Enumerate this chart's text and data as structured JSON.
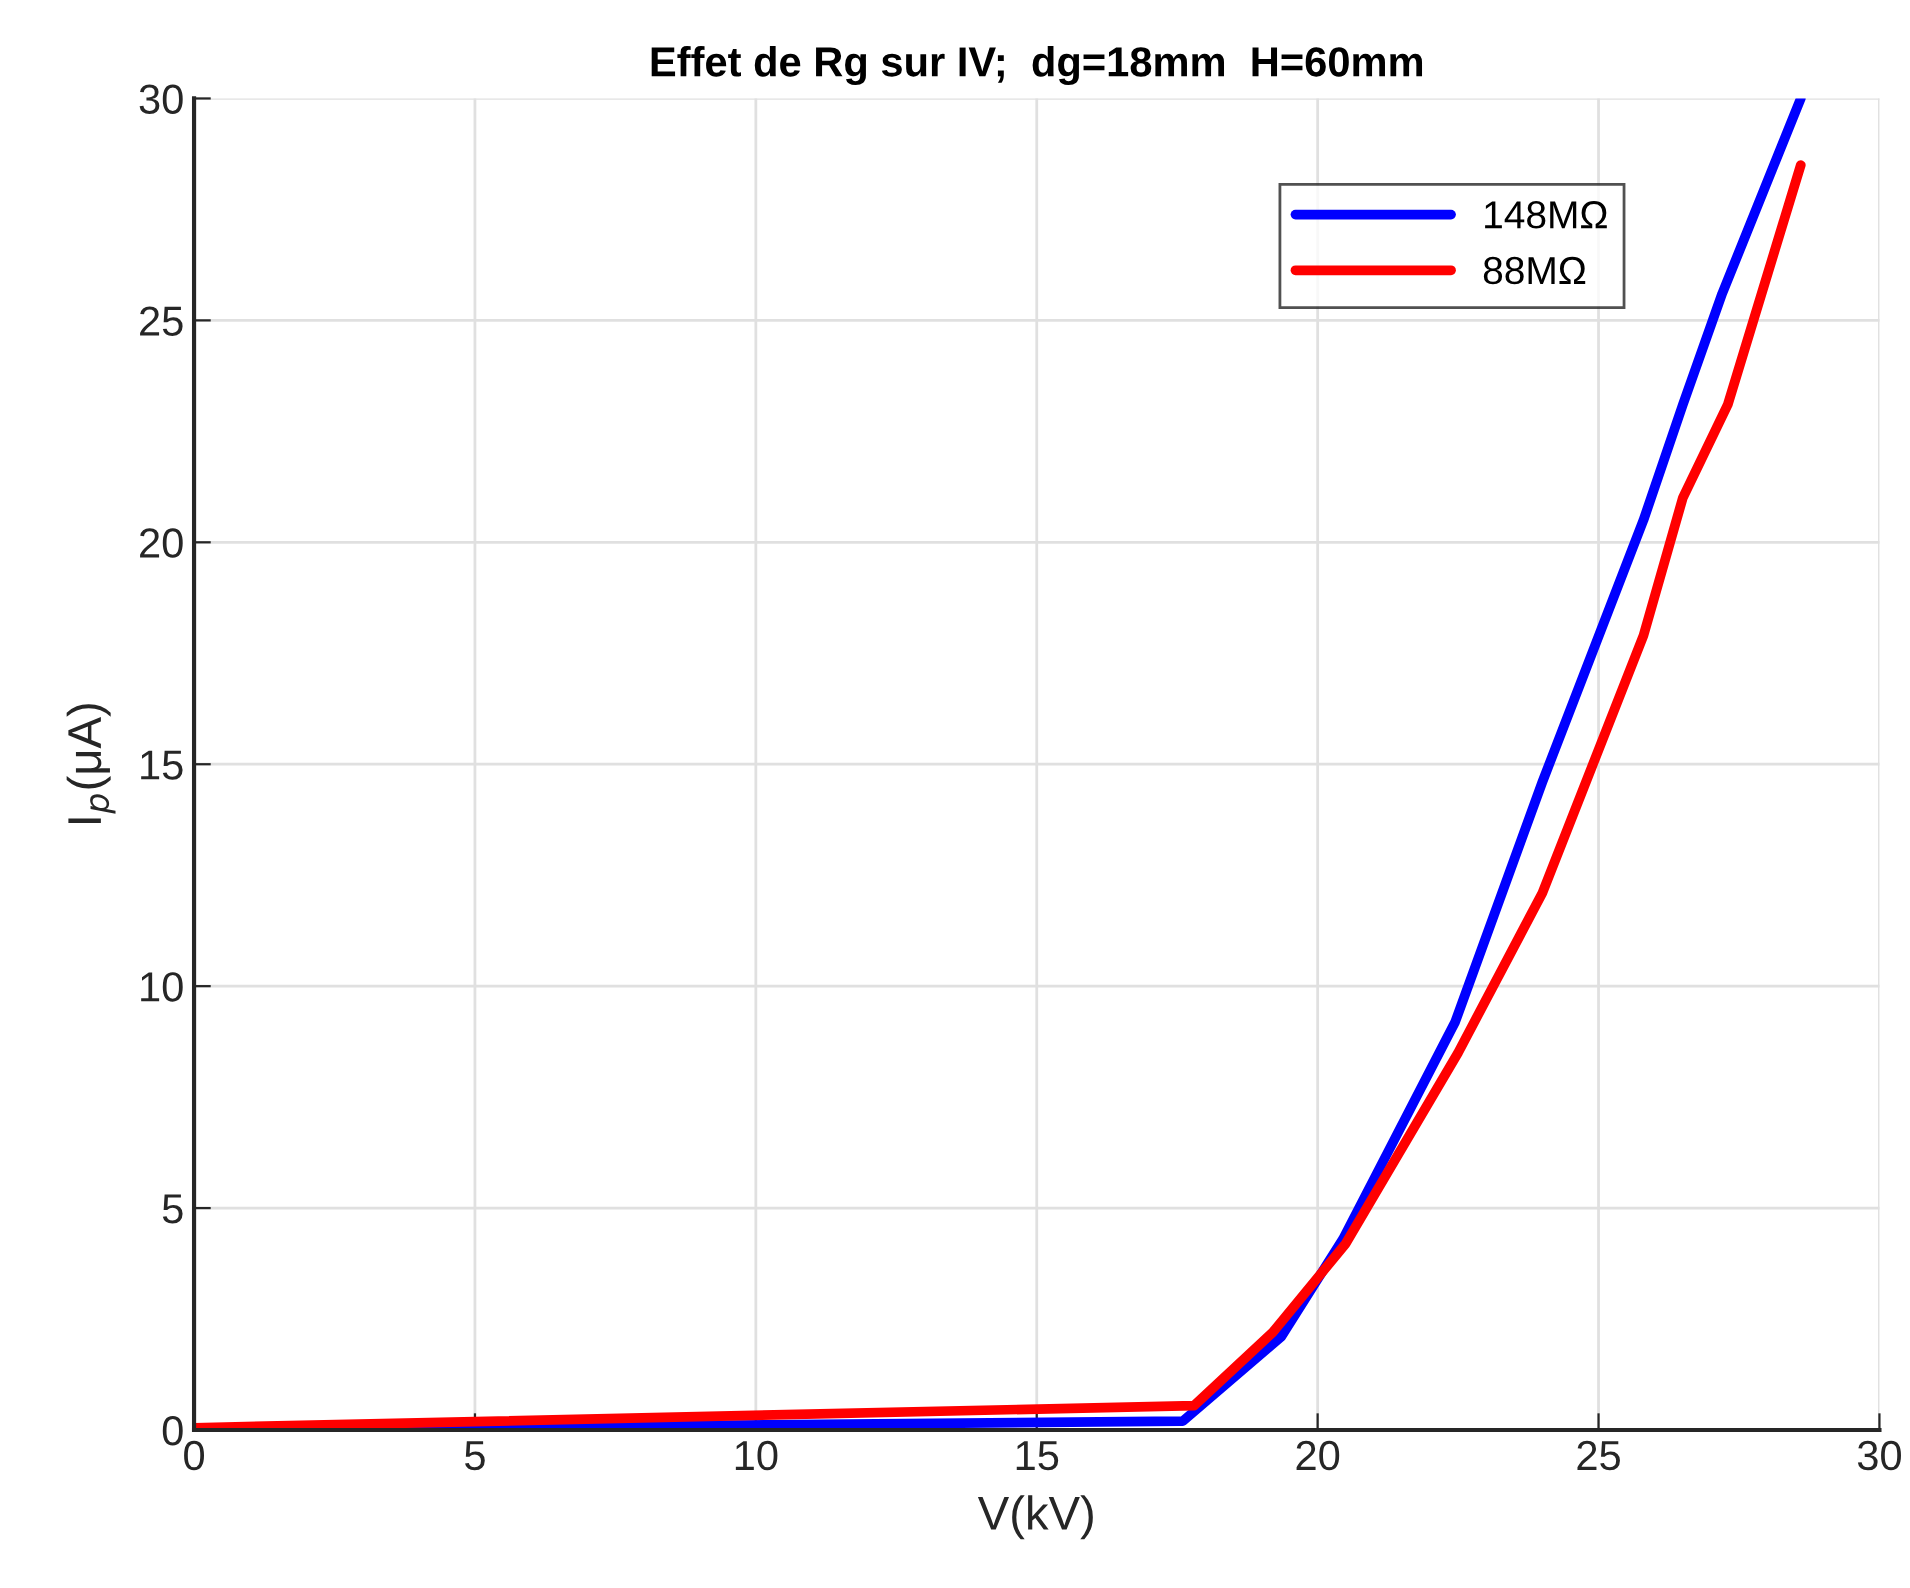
{
  "chart_data": {
    "type": "line",
    "title": "Effet de Rg sur IV;  dg=18mm  H=60mm",
    "xlabel": "V(kV)",
    "ylabel": "I$_{p}$(μA)",
    "series": [
      {
        "name": "148MΩ",
        "color": "#0000ff",
        "x": [
          0,
          17.6,
          19.35,
          20.45,
          22.45,
          24.0,
          25.8,
          26.5,
          27.2,
          28.6
        ],
        "values": [
          0,
          0.2,
          2.1,
          4.3,
          9.2,
          14.6,
          20.5,
          23.1,
          25.6,
          30
        ]
      },
      {
        "name": "88MΩ",
        "color": "#ff0000",
        "x": [
          0,
          17.8,
          19.2,
          20.5,
          22.5,
          24.0,
          25.8,
          26.5,
          27.3,
          28.6
        ],
        "values": [
          0.05,
          0.55,
          2.2,
          4.2,
          8.5,
          12.1,
          17.9,
          21.0,
          23.1,
          28.5
        ]
      }
    ],
    "xlim": [
      0,
      30
    ],
    "ylim": [
      0,
      30
    ],
    "xticks": [
      0,
      5,
      10,
      15,
      20,
      25,
      30
    ],
    "yticks": [
      0,
      5,
      10,
      15,
      20,
      25,
      30
    ],
    "grid": true,
    "legend": "top right"
  }
}
